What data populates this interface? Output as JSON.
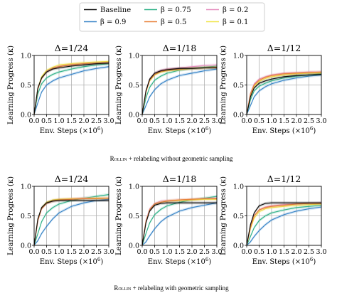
{
  "legend": [
    {
      "name": "Baseline",
      "color": "#111111"
    },
    {
      "name": "β = 0.9",
      "color": "#3a86c8"
    },
    {
      "name": "β = 0.75",
      "color": "#33b38a"
    },
    {
      "name": "β = 0.5",
      "color": "#e8823a"
    },
    {
      "name": "β = 0.2",
      "color": "#e58fbf"
    },
    {
      "name": "β = 0.1",
      "color": "#f0e54a"
    }
  ],
  "captions": [
    {
      "prefix": "Rollin",
      "rest": " + relabeling without geometric sampling"
    },
    {
      "prefix": "Rollin",
      "rest": " + relabeling with geometric sampling"
    }
  ],
  "axes_text": {
    "ylabel": "Learning Progress (κ)",
    "xlabel_main": "Env. Steps (×10",
    "xlabel_exp": "6",
    "xlabel_end": ")"
  },
  "chart_data": [
    {
      "type": "line",
      "title": "Δ=1/24",
      "xlim": [
        0,
        3.0
      ],
      "ylim": [
        0,
        1.0
      ],
      "xticks": [
        "0.0",
        "0.5",
        "1.0",
        "1.5",
        "2.0",
        "2.5",
        "3.0"
      ],
      "yticks": [
        "0.0",
        "0.5",
        "1.0"
      ],
      "grid": true,
      "x": [
        0,
        0.15,
        0.3,
        0.5,
        0.75,
        1.0,
        1.5,
        2.0,
        2.5,
        3.0
      ],
      "series": [
        {
          "name": "Baseline",
          "values": [
            0,
            0.45,
            0.62,
            0.72,
            0.77,
            0.79,
            0.82,
            0.84,
            0.86,
            0.87
          ]
        },
        {
          "name": "β = 0.9",
          "values": [
            0,
            0.2,
            0.38,
            0.5,
            0.57,
            0.62,
            0.68,
            0.74,
            0.78,
            0.81
          ]
        },
        {
          "name": "β = 0.75",
          "values": [
            0,
            0.35,
            0.52,
            0.62,
            0.68,
            0.72,
            0.77,
            0.81,
            0.84,
            0.86
          ]
        },
        {
          "name": "β = 0.5",
          "values": [
            0,
            0.43,
            0.61,
            0.72,
            0.78,
            0.81,
            0.84,
            0.86,
            0.87,
            0.88
          ]
        },
        {
          "name": "β = 0.2",
          "values": [
            0,
            0.44,
            0.62,
            0.73,
            0.79,
            0.82,
            0.85,
            0.86,
            0.87,
            0.88
          ]
        },
        {
          "name": "β = 0.1",
          "values": [
            0,
            0.45,
            0.64,
            0.75,
            0.8,
            0.84,
            0.86,
            0.88,
            0.89,
            0.9
          ]
        }
      ]
    },
    {
      "type": "line",
      "title": "Δ=1/18",
      "xlim": [
        0,
        3.0
      ],
      "ylim": [
        0,
        1.0
      ],
      "xticks": [
        "0.0",
        "0.5",
        "1.0",
        "1.5",
        "2.0",
        "2.5",
        "3.0"
      ],
      "yticks": [
        "0.0",
        "0.5",
        "1.0"
      ],
      "grid": true,
      "x": [
        0,
        0.15,
        0.3,
        0.5,
        0.75,
        1.0,
        1.5,
        2.0,
        2.5,
        3.0
      ],
      "series": [
        {
          "name": "Baseline",
          "values": [
            0,
            0.4,
            0.6,
            0.7,
            0.74,
            0.76,
            0.78,
            0.78,
            0.79,
            0.79
          ]
        },
        {
          "name": "β = 0.9",
          "values": [
            0,
            0.15,
            0.3,
            0.42,
            0.52,
            0.58,
            0.66,
            0.7,
            0.74,
            0.77
          ]
        },
        {
          "name": "β = 0.75",
          "values": [
            0,
            0.28,
            0.46,
            0.58,
            0.65,
            0.7,
            0.75,
            0.78,
            0.8,
            0.82
          ]
        },
        {
          "name": "β = 0.5",
          "values": [
            0,
            0.38,
            0.58,
            0.68,
            0.73,
            0.75,
            0.77,
            0.78,
            0.79,
            0.8
          ]
        },
        {
          "name": "β = 0.2",
          "values": [
            0,
            0.4,
            0.6,
            0.7,
            0.75,
            0.77,
            0.79,
            0.81,
            0.83,
            0.84
          ]
        },
        {
          "name": "β = 0.1",
          "values": [
            0,
            0.38,
            0.57,
            0.67,
            0.72,
            0.74,
            0.76,
            0.78,
            0.79,
            0.8
          ]
        }
      ]
    },
    {
      "type": "line",
      "title": "Δ=1/12",
      "xlim": [
        0,
        3.0
      ],
      "ylim": [
        0,
        1.0
      ],
      "xticks": [
        "0.0",
        "0.5",
        "1.0",
        "1.5",
        "2.0",
        "2.5",
        "3.0"
      ],
      "yticks": [
        "0.0",
        "0.5",
        "1.0"
      ],
      "grid": true,
      "x": [
        0,
        0.15,
        0.3,
        0.5,
        0.75,
        1.0,
        1.5,
        2.0,
        2.5,
        3.0
      ],
      "series": [
        {
          "name": "Baseline",
          "values": [
            0,
            0.3,
            0.45,
            0.53,
            0.57,
            0.6,
            0.64,
            0.66,
            0.67,
            0.68
          ]
        },
        {
          "name": "β = 0.9",
          "values": [
            0,
            0.15,
            0.3,
            0.4,
            0.47,
            0.52,
            0.58,
            0.62,
            0.65,
            0.67
          ]
        },
        {
          "name": "β = 0.75",
          "values": [
            0,
            0.25,
            0.4,
            0.48,
            0.53,
            0.57,
            0.62,
            0.65,
            0.67,
            0.69
          ]
        },
        {
          "name": "β = 0.5",
          "values": [
            0,
            0.35,
            0.5,
            0.58,
            0.63,
            0.66,
            0.69,
            0.7,
            0.71,
            0.72
          ]
        },
        {
          "name": "β = 0.2",
          "values": [
            0,
            0.36,
            0.52,
            0.6,
            0.64,
            0.67,
            0.7,
            0.71,
            0.72,
            0.72
          ]
        },
        {
          "name": "β = 0.1",
          "values": [
            0,
            0.33,
            0.48,
            0.56,
            0.61,
            0.64,
            0.67,
            0.69,
            0.7,
            0.7
          ]
        }
      ]
    },
    {
      "type": "line",
      "title": "Δ=1/24",
      "xlim": [
        0,
        3.0
      ],
      "ylim": [
        0,
        1.0
      ],
      "xticks": [
        "0.0",
        "0.5",
        "1.0",
        "1.5",
        "2.0",
        "2.5",
        "3.0"
      ],
      "yticks": [
        "0.0",
        "0.5",
        "1.0"
      ],
      "grid": true,
      "x": [
        0,
        0.15,
        0.3,
        0.5,
        0.75,
        1.0,
        1.5,
        2.0,
        2.5,
        3.0
      ],
      "series": [
        {
          "name": "Baseline",
          "values": [
            0,
            0.45,
            0.64,
            0.72,
            0.75,
            0.76,
            0.76,
            0.76,
            0.76,
            0.76
          ]
        },
        {
          "name": "β = 0.9",
          "values": [
            0,
            0.08,
            0.2,
            0.32,
            0.45,
            0.55,
            0.66,
            0.72,
            0.76,
            0.78
          ]
        },
        {
          "name": "β = 0.75",
          "values": [
            0,
            0.2,
            0.4,
            0.55,
            0.64,
            0.7,
            0.76,
            0.8,
            0.83,
            0.86
          ]
        },
        {
          "name": "β = 0.5",
          "values": [
            0,
            0.42,
            0.62,
            0.71,
            0.75,
            0.77,
            0.78,
            0.79,
            0.79,
            0.8
          ]
        },
        {
          "name": "β = 0.2",
          "values": [
            0,
            0.42,
            0.62,
            0.72,
            0.76,
            0.78,
            0.79,
            0.8,
            0.8,
            0.8
          ]
        },
        {
          "name": "β = 0.1",
          "values": [
            0,
            0.44,
            0.64,
            0.73,
            0.77,
            0.78,
            0.79,
            0.79,
            0.8,
            0.8
          ]
        }
      ]
    },
    {
      "type": "line",
      "title": "Δ=1/18",
      "xlim": [
        0,
        3.0
      ],
      "ylim": [
        0,
        1.0
      ],
      "xticks": [
        "0.0",
        "0.5",
        "1.0",
        "1.5",
        "2.0",
        "2.5",
        "3.0"
      ],
      "yticks": [
        "0.0",
        "0.5",
        "1.0"
      ],
      "grid": true,
      "x": [
        0,
        0.15,
        0.3,
        0.5,
        0.75,
        1.0,
        1.5,
        2.0,
        2.5,
        3.0
      ],
      "series": [
        {
          "name": "Baseline",
          "values": [
            0,
            0.38,
            0.58,
            0.68,
            0.71,
            0.72,
            0.72,
            0.72,
            0.72,
            0.72
          ]
        },
        {
          "name": "β = 0.9",
          "values": [
            0,
            0.06,
            0.16,
            0.28,
            0.4,
            0.48,
            0.58,
            0.64,
            0.68,
            0.72
          ]
        },
        {
          "name": "β = 0.75",
          "values": [
            0,
            0.2,
            0.38,
            0.52,
            0.61,
            0.67,
            0.73,
            0.77,
            0.8,
            0.83
          ]
        },
        {
          "name": "β = 0.5",
          "values": [
            0,
            0.4,
            0.6,
            0.7,
            0.73,
            0.75,
            0.77,
            0.78,
            0.79,
            0.79
          ]
        },
        {
          "name": "β = 0.2",
          "values": [
            0,
            0.42,
            0.62,
            0.71,
            0.75,
            0.76,
            0.77,
            0.78,
            0.79,
            0.8
          ]
        },
        {
          "name": "β = 0.1",
          "values": [
            0,
            0.4,
            0.6,
            0.7,
            0.73,
            0.75,
            0.76,
            0.77,
            0.78,
            0.78
          ]
        }
      ]
    },
    {
      "type": "line",
      "title": "Δ=1/12",
      "xlim": [
        0,
        3.0
      ],
      "ylim": [
        0,
        1.0
      ],
      "xticks": [
        "0.0",
        "0.5",
        "1.0",
        "1.5",
        "2.0",
        "2.5",
        "3.0"
      ],
      "yticks": [
        "0.0",
        "0.5",
        "1.0"
      ],
      "grid": true,
      "x": [
        0,
        0.15,
        0.3,
        0.5,
        0.75,
        1.0,
        1.5,
        2.0,
        2.5,
        3.0
      ],
      "series": [
        {
          "name": "Baseline",
          "values": [
            0,
            0.35,
            0.55,
            0.67,
            0.71,
            0.72,
            0.72,
            0.72,
            0.72,
            0.72
          ]
        },
        {
          "name": "β = 0.9",
          "values": [
            0,
            0.06,
            0.15,
            0.25,
            0.35,
            0.43,
            0.52,
            0.58,
            0.62,
            0.65
          ]
        },
        {
          "name": "β = 0.75",
          "values": [
            0,
            0.15,
            0.3,
            0.42,
            0.5,
            0.55,
            0.6,
            0.64,
            0.66,
            0.68
          ]
        },
        {
          "name": "β = 0.5",
          "values": [
            0,
            0.3,
            0.5,
            0.6,
            0.64,
            0.66,
            0.68,
            0.7,
            0.71,
            0.71
          ]
        },
        {
          "name": "β = 0.2",
          "values": [
            0,
            0.3,
            0.5,
            0.6,
            0.65,
            0.67,
            0.69,
            0.7,
            0.71,
            0.72
          ]
        },
        {
          "name": "β = 0.1",
          "values": [
            0,
            0.28,
            0.46,
            0.57,
            0.62,
            0.64,
            0.66,
            0.68,
            0.69,
            0.7
          ]
        }
      ]
    }
  ]
}
